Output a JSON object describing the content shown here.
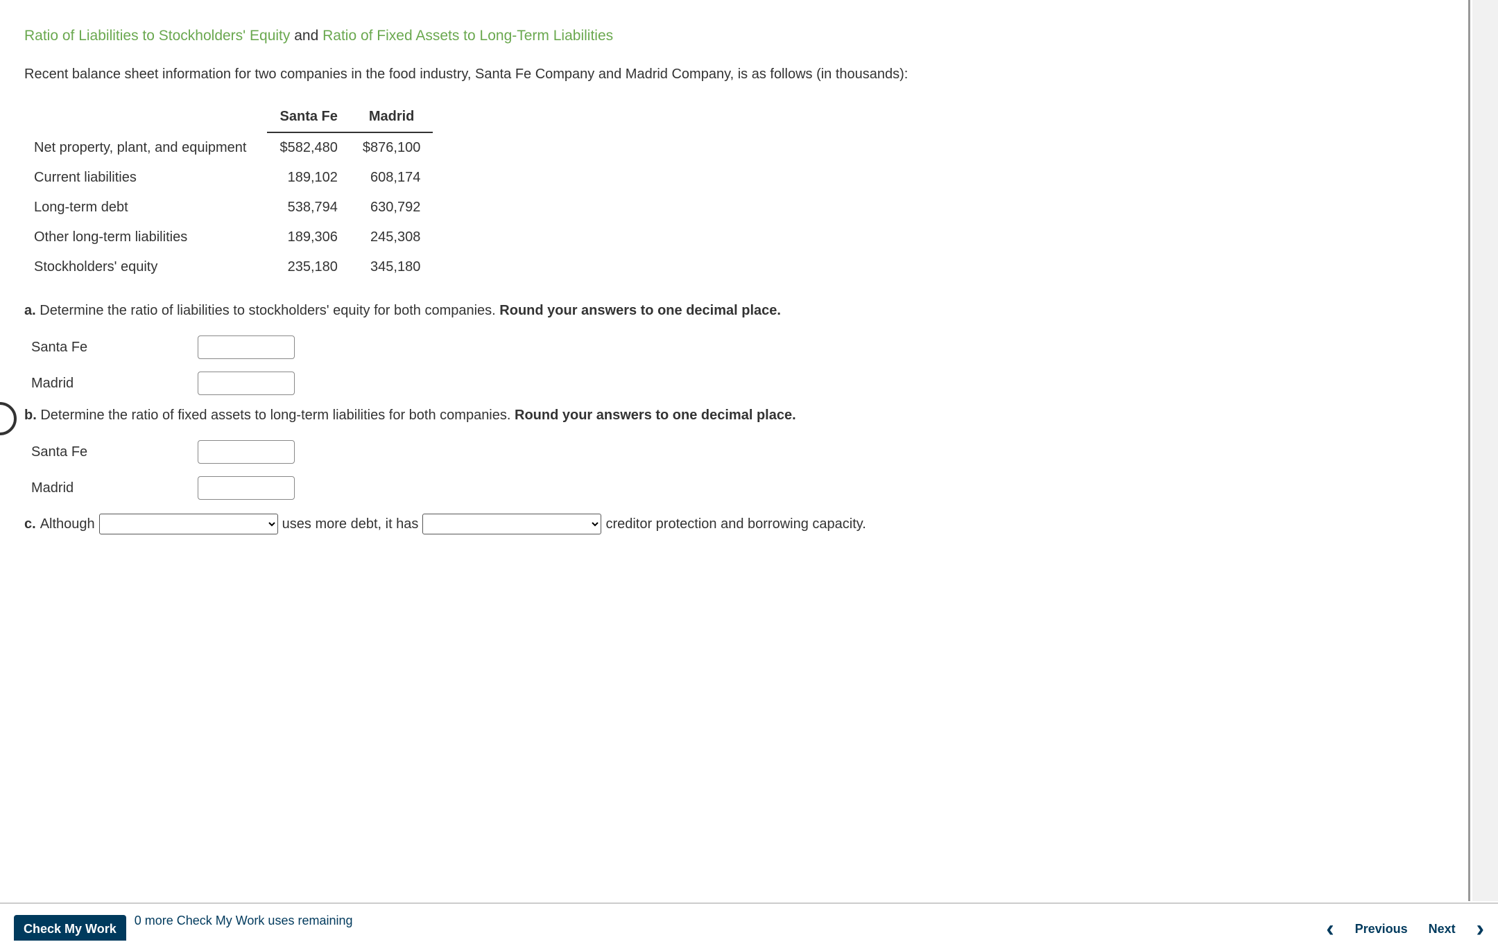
{
  "heading": {
    "part1": "Ratio of Liabilities to Stockholders' Equity",
    "and": " and ",
    "part2": "Ratio of Fixed Assets to Long-Term Liabilities"
  },
  "intro": "Recent balance sheet information for two companies in the food industry, Santa Fe Company and Madrid Company, is as follows (in thousands):",
  "table": {
    "col1": "Santa Fe",
    "col2": "Madrid",
    "rows": [
      {
        "label": "Net property, plant, and equipment",
        "c1": "$582,480",
        "c2": "$876,100"
      },
      {
        "label": "Current liabilities",
        "c1": "189,102",
        "c2": "608,174"
      },
      {
        "label": "Long-term debt",
        "c1": "538,794",
        "c2": "630,792"
      },
      {
        "label": "Other long-term liabilities",
        "c1": "189,306",
        "c2": "245,308"
      },
      {
        "label": "Stockholders' equity",
        "c1": "235,180",
        "c2": "345,180"
      }
    ]
  },
  "qa": {
    "a_prefix": "a.",
    "a_text": "  Determine the ratio of liabilities to stockholders' equity for both companies. ",
    "a_bold": "Round your answers to one decimal place.",
    "b_prefix": "b.",
    "b_text": "  Determine the ratio of fixed assets to long-term liabilities for both companies. ",
    "b_bold": "Round your answers to one decimal place.",
    "label_sf": "Santa Fe",
    "label_md": "Madrid"
  },
  "qc": {
    "prefix": "c.",
    "t1": "  Although ",
    "t2": " uses more debt, it has ",
    "t3": " creditor protection and borrowing capacity."
  },
  "footer": {
    "check": "Check My Work",
    "uses": "0 more Check My Work uses remaining",
    "prev": "Previous",
    "next": "Next"
  }
}
